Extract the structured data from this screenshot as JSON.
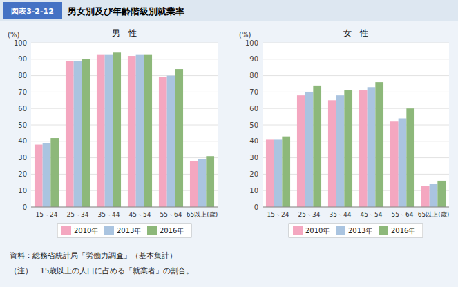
{
  "chart_data": [
    {
      "type": "bar",
      "title": "男　性",
      "ylabel": "(%)",
      "annotations": [
        "図表3-2-12",
        "男女別及び年齢階級別就業率",
        "資料：総務省統計局「労働力調査」（基本集計）",
        "（注）　15歳以上の人口に占める「就業者」の割合。"
      ],
      "categories": [
        "15～24",
        "25～34",
        "35～44",
        "45～54",
        "55～64",
        "65以上(歳)"
      ],
      "series": [
        {
          "name": "2010年",
          "color": "#f4a7c0",
          "values": [
            38,
            89,
            93,
            92,
            79,
            28
          ]
        },
        {
          "name": "2013年",
          "color": "#aac4e0",
          "values": [
            39,
            89,
            93,
            93,
            80,
            29
          ]
        },
        {
          "name": "2016年",
          "color": "#8db87a",
          "values": [
            42,
            90,
            94,
            93,
            84,
            31
          ]
        }
      ],
      "ylim": [
        0,
        100
      ],
      "yticks": [
        0,
        10,
        20,
        30,
        40,
        50,
        60,
        70,
        80,
        90,
        100
      ],
      "grid": true,
      "legend": "bottom"
    },
    {
      "type": "bar",
      "title": "女　性",
      "ylabel": "(%)",
      "categories": [
        "15～24",
        "25～34",
        "35～44",
        "45～54",
        "55～64",
        "65以上(歳)"
      ],
      "series": [
        {
          "name": "2010年",
          "color": "#f4a7c0",
          "values": [
            41,
            68,
            65,
            71,
            52,
            13
          ]
        },
        {
          "name": "2013年",
          "color": "#aac4e0",
          "values": [
            41,
            70,
            68,
            73,
            54,
            14
          ]
        },
        {
          "name": "2016年",
          "color": "#8db87a",
          "values": [
            43,
            74,
            71,
            76,
            60,
            16
          ]
        }
      ],
      "ylim": [
        0,
        100
      ],
      "yticks": [
        0,
        10,
        20,
        30,
        40,
        50,
        60,
        70,
        80,
        90,
        100
      ],
      "grid": true,
      "legend": "bottom"
    }
  ]
}
